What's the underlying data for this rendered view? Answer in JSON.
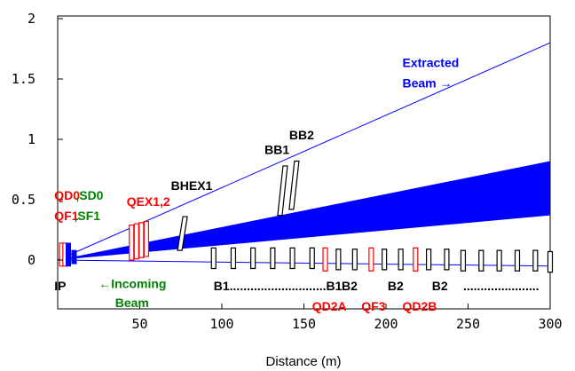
{
  "chart_data": {
    "type": "line",
    "title": "",
    "xlabel": "Distance (m)",
    "ylabel": "",
    "xlim": [
      0,
      300
    ],
    "ylim": [
      -0.5,
      2.0
    ],
    "x_ticks": [
      50,
      100,
      150,
      200,
      250,
      300
    ],
    "x_tick_labels": [
      "50",
      "100",
      "150",
      "200",
      "250",
      "300"
    ],
    "y_ticks": [
      0,
      0.5,
      1,
      1.5,
      2
    ],
    "y_tick_labels": [
      "0",
      "0.5",
      "1",
      "1.5",
      "2"
    ],
    "grid": false,
    "colors": {
      "beam": "#0000ff",
      "magnet_red": "#ff0000",
      "magnet_black": "#000000",
      "label_red": "#ff0000",
      "label_green": "#008000",
      "label_blue": "#0000ff"
    },
    "series": [
      {
        "x": [
          0,
          300
        ],
        "y": [
          0,
          1.8
        ]
      },
      {
        "x": [
          0,
          300
        ],
        "y": [
          0,
          -0.05
        ]
      }
    ],
    "band": {
      "x": [
        0,
        300
      ],
      "upper": [
        0,
        0.82
      ],
      "lower": [
        0,
        0.37
      ]
    },
    "elements": [
      {
        "kind": "magnet",
        "color": "red",
        "x": 2.5,
        "y_bottom": -0.05,
        "y_top": 0.14
      },
      {
        "kind": "magnet",
        "color": "red",
        "x": 4.5,
        "y_bottom": -0.05,
        "y_top": 0.14
      },
      {
        "kind": "magnet",
        "color": "blue",
        "x": 6.5,
        "y_bottom": -0.05,
        "y_top": 0.14
      },
      {
        "kind": "magnet",
        "color": "blue",
        "x": 10,
        "y_bottom": -0.03,
        "y_top": 0.08
      },
      {
        "kind": "magnet",
        "color": "red",
        "x": 45,
        "y_bottom": 0.0,
        "y_top": 0.29
      },
      {
        "kind": "magnet",
        "color": "red",
        "x": 48,
        "y_bottom": 0.01,
        "y_top": 0.3
      },
      {
        "kind": "magnet",
        "color": "red",
        "x": 51,
        "y_bottom": 0.02,
        "y_top": 0.31
      },
      {
        "kind": "magnet",
        "color": "red",
        "x": 54,
        "y_bottom": 0.03,
        "y_top": 0.32
      },
      {
        "kind": "magnet",
        "color": "black",
        "x": 76,
        "y_bottom": 0.08,
        "y_top": 0.36
      },
      {
        "kind": "magnet",
        "color": "black",
        "x": 137,
        "y_bottom": 0.37,
        "y_top": 0.78
      },
      {
        "kind": "magnet",
        "color": "black",
        "x": 144,
        "y_bottom": 0.42,
        "y_top": 0.82
      },
      {
        "kind": "magnet",
        "color": "black",
        "x": 95,
        "y_bottom": -0.07,
        "y_top": 0.1
      },
      {
        "kind": "magnet",
        "color": "black",
        "x": 107,
        "y_bottom": -0.07,
        "y_top": 0.1
      },
      {
        "kind": "magnet",
        "color": "black",
        "x": 119,
        "y_bottom": -0.07,
        "y_top": 0.1
      },
      {
        "kind": "magnet",
        "color": "black",
        "x": 131,
        "y_bottom": -0.07,
        "y_top": 0.1
      },
      {
        "kind": "magnet",
        "color": "black",
        "x": 143,
        "y_bottom": -0.07,
        "y_top": 0.1
      },
      {
        "kind": "magnet",
        "color": "black",
        "x": 155,
        "y_bottom": -0.07,
        "y_top": 0.1
      },
      {
        "kind": "magnet",
        "color": "red",
        "x": 163,
        "y_bottom": -0.09,
        "y_top": 0.1
      },
      {
        "kind": "magnet",
        "color": "black",
        "x": 171,
        "y_bottom": -0.08,
        "y_top": 0.09
      },
      {
        "kind": "magnet",
        "color": "black",
        "x": 181,
        "y_bottom": -0.08,
        "y_top": 0.09
      },
      {
        "kind": "magnet",
        "color": "red",
        "x": 191,
        "y_bottom": -0.09,
        "y_top": 0.1
      },
      {
        "kind": "magnet",
        "color": "black",
        "x": 199,
        "y_bottom": -0.08,
        "y_top": 0.09
      },
      {
        "kind": "magnet",
        "color": "black",
        "x": 209,
        "y_bottom": -0.08,
        "y_top": 0.09
      },
      {
        "kind": "magnet",
        "color": "red",
        "x": 218,
        "y_bottom": -0.09,
        "y_top": 0.1
      },
      {
        "kind": "magnet",
        "color": "black",
        "x": 226,
        "y_bottom": -0.08,
        "y_top": 0.09
      },
      {
        "kind": "magnet",
        "color": "black",
        "x": 237,
        "y_bottom": -0.08,
        "y_top": 0.09
      },
      {
        "kind": "magnet",
        "color": "black",
        "x": 247,
        "y_bottom": -0.09,
        "y_top": 0.08
      },
      {
        "kind": "magnet",
        "color": "black",
        "x": 258,
        "y_bottom": -0.09,
        "y_top": 0.08
      },
      {
        "kind": "magnet",
        "color": "black",
        "x": 269,
        "y_bottom": -0.09,
        "y_top": 0.08
      },
      {
        "kind": "magnet",
        "color": "black",
        "x": 280,
        "y_bottom": -0.09,
        "y_top": 0.08
      },
      {
        "kind": "magnet",
        "color": "black",
        "x": 291,
        "y_bottom": -0.09,
        "y_top": 0.08
      },
      {
        "kind": "magnet",
        "color": "black",
        "x": 300,
        "y_bottom": -0.1,
        "y_top": 0.07
      }
    ],
    "annotations": [
      {
        "text": "Extracted",
        "color": "blue",
        "x": 210,
        "y": 1.6
      },
      {
        "text": "Beam →",
        "color": "blue",
        "x": 210,
        "y": 1.43
      },
      {
        "text": "BB1",
        "color": "black",
        "x": 126,
        "y": 0.88
      },
      {
        "text": "BB2",
        "color": "black",
        "x": 141,
        "y": 1.0
      },
      {
        "text": "BHEX1",
        "color": "black",
        "x": 69,
        "y": 0.58
      },
      {
        "text": "QD0",
        "color": "red",
        "x": -2,
        "y": 0.5
      },
      {
        "text": ",SD0",
        "color": "green",
        "x": 11,
        "y": 0.5
      },
      {
        "text": "QEX1,2",
        "color": "red",
        "x": 42,
        "y": 0.45
      },
      {
        "text": "QF1",
        "color": "red",
        "x": -2,
        "y": 0.33
      },
      {
        "text": ",SF1",
        "color": "green",
        "x": 10,
        "y": 0.33
      },
      {
        "text": "IP",
        "color": "black",
        "x": -2,
        "y": -0.25
      },
      {
        "text": "←Incoming",
        "color": "green",
        "x": 25,
        "y": -0.23
      },
      {
        "text": "Beam",
        "color": "green",
        "x": 35,
        "y": -0.39
      },
      {
        "text": "B1............................B1",
        "color": "black",
        "x": 95,
        "y": -0.25
      },
      {
        "text": "B2",
        "color": "black",
        "x": 173,
        "y": -0.25
      },
      {
        "text": "B2",
        "color": "black",
        "x": 201,
        "y": -0.25
      },
      {
        "text": "B2",
        "color": "black",
        "x": 228,
        "y": -0.25
      },
      {
        "text": "......................",
        "color": "black",
        "x": 247,
        "y": -0.25
      },
      {
        "text": "QD2A",
        "color": "red",
        "x": 155,
        "y": -0.42
      },
      {
        "text": "QF3",
        "color": "red",
        "x": 185,
        "y": -0.42
      },
      {
        "text": "QD2B",
        "color": "red",
        "x": 210,
        "y": -0.42
      }
    ]
  }
}
